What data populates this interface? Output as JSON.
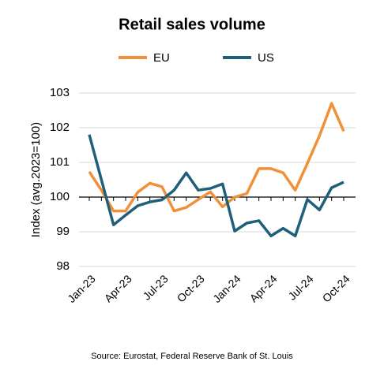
{
  "chart_data": {
    "type": "line",
    "title": "Retail sales volume",
    "y_label": "Index (avg.2023=100)",
    "source": "Source: Eurostat, Federal Reserve Bank of St. Louis",
    "categories": [
      "Jan-23",
      null,
      null,
      "Apr-23",
      null,
      null,
      "Jul-23",
      null,
      null,
      "Oct-23",
      null,
      null,
      "Jan-24",
      null,
      null,
      "Apr-24",
      null,
      null,
      "Jul-24",
      null,
      null,
      "Oct-24"
    ],
    "series": [
      {
        "name": "EU",
        "color": "#f0913a",
        "values": [
          100.73,
          100.2,
          99.6,
          99.6,
          100.14,
          100.4,
          100.3,
          99.6,
          99.7,
          99.93,
          100.15,
          99.72,
          100.0,
          100.1,
          100.82,
          100.82,
          100.7,
          100.2,
          100.97,
          101.77,
          102.7,
          101.9
        ]
      },
      {
        "name": "US",
        "color": "#1f5f7a",
        "values": [
          101.8,
          100.5,
          99.2,
          99.48,
          99.75,
          99.86,
          99.92,
          100.2,
          100.7,
          100.2,
          100.25,
          100.38,
          99.02,
          99.25,
          99.32,
          98.88,
          99.1,
          98.88,
          99.93,
          99.63,
          100.27,
          100.43
        ]
      }
    ],
    "ylim": [
      98,
      103
    ],
    "yticks": [
      98,
      99,
      100,
      101,
      102,
      103
    ],
    "xaxis_at": 100,
    "grid": true,
    "legend": "top"
  }
}
